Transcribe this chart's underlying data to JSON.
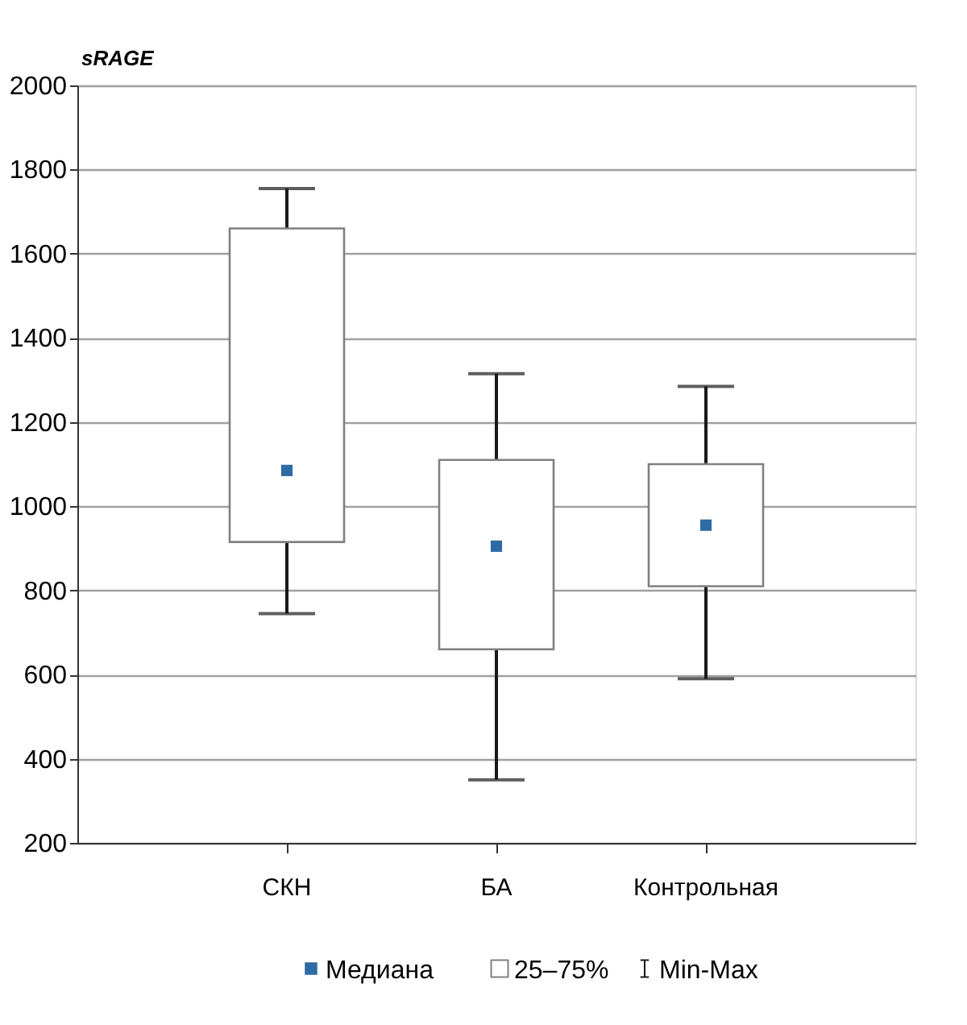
{
  "chart_data": {
    "type": "box",
    "ylabel": "sRAGE",
    "categories": [
      "СКН",
      "БА",
      "Контрольная"
    ],
    "boxes": [
      {
        "low": 745,
        "q1": 915,
        "median": 1085,
        "q3": 1660,
        "high": 1755
      },
      {
        "low": 350,
        "q1": 660,
        "median": 905,
        "q3": 1110,
        "high": 1315
      },
      {
        "low": 590,
        "q1": 810,
        "median": 955,
        "q3": 1100,
        "high": 1285
      }
    ],
    "annotations": [
      "Медиана",
      "25–75%",
      "Min-Max"
    ],
    "ylim": [
      200,
      2000
    ],
    "yticks": [
      200,
      400,
      600,
      800,
      1000,
      1200,
      1400,
      1600,
      1800,
      2000
    ],
    "grid": "y",
    "marker": "square"
  }
}
